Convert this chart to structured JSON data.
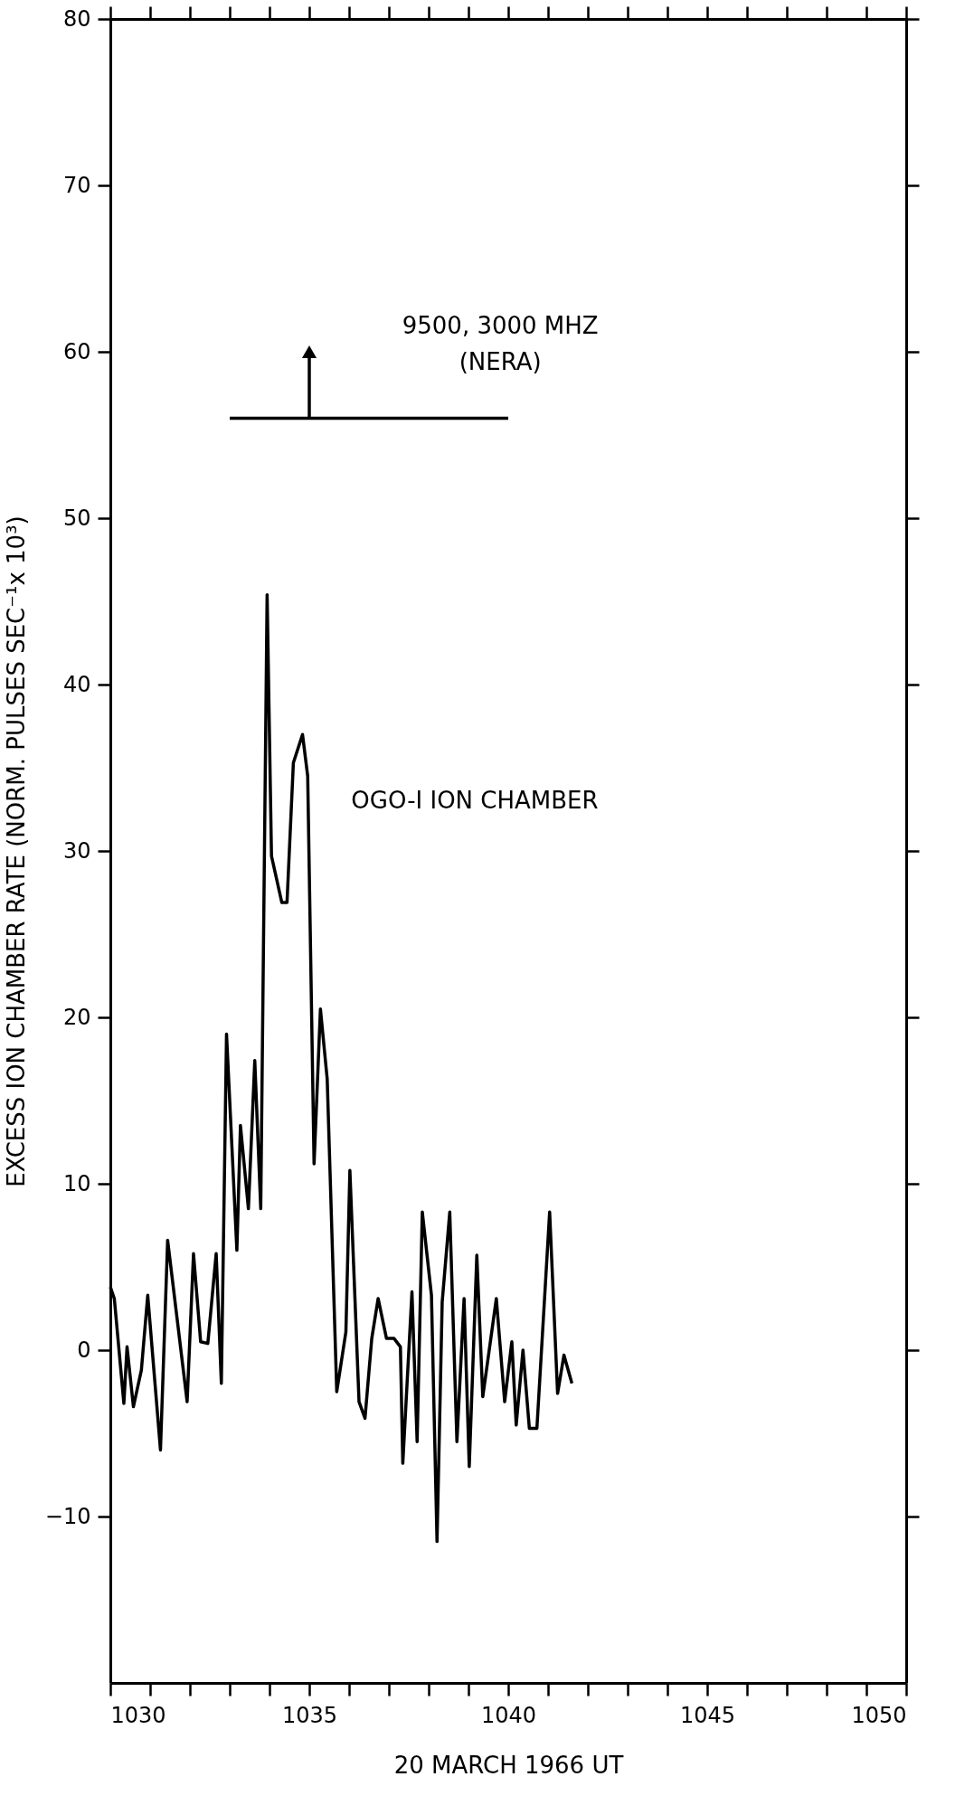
{
  "chart_data": {
    "type": "line",
    "xlabel": "20 MARCH 1966 UT",
    "ylabel": "EXCESS  ION CHAMBER RATE (NORM. PULSES SEC⁻¹x 10³)",
    "xlim": [
      1030,
      1050
    ],
    "ylim": [
      -20,
      80
    ],
    "xticks": [
      1030,
      {
        "value": 1031,
        "label": null
      },
      {
        "value": 1032,
        "label": null
      },
      {
        "value": 1033,
        "label": null
      },
      {
        "value": 1034,
        "label": null
      },
      1035,
      {
        "value": 1036,
        "label": null
      },
      {
        "value": 1037,
        "label": null
      },
      {
        "value": 1038,
        "label": null
      },
      {
        "value": 1039,
        "label": null
      },
      1040,
      {
        "value": 1041,
        "label": null
      },
      {
        "value": 1042,
        "label": null
      },
      {
        "value": 1043,
        "label": null
      },
      {
        "value": 1044,
        "label": null
      },
      1045,
      {
        "value": 1046,
        "label": null
      },
      {
        "value": 1047,
        "label": null
      },
      {
        "value": 1048,
        "label": null
      },
      {
        "value": 1049,
        "label": null
      },
      1050
    ],
    "yticks": [
      -10,
      0,
      10,
      20,
      30,
      40,
      50,
      60,
      70,
      80
    ],
    "grid": false,
    "marker": "none",
    "line_style": "solid",
    "series": [
      {
        "name": "OGO-I ION CHAMBER",
        "color": "#000000",
        "x": [
          1030.0,
          1030.1,
          1030.34,
          1030.42,
          1030.58,
          1030.78,
          1030.94,
          1031.26,
          1031.44,
          1031.93,
          1032.09,
          1032.27,
          1032.45,
          1032.66,
          1032.79,
          1032.92,
          1033.18,
          1033.27,
          1033.47,
          1033.63,
          1033.78,
          1033.94,
          1034.05,
          1034.31,
          1034.44,
          1034.6,
          1034.83,
          1034.96,
          1035.12,
          1035.28,
          1035.45,
          1035.69,
          1035.92,
          1036.02,
          1036.25,
          1036.4,
          1036.57,
          1036.73,
          1036.94,
          1037.13,
          1037.29,
          1037.35,
          1037.58,
          1037.71,
          1037.84,
          1038.07,
          1038.21,
          1038.34,
          1038.53,
          1038.71,
          1038.89,
          1039.02,
          1039.21,
          1039.36,
          1039.7,
          1039.91,
          1040.09,
          1040.2,
          1040.37,
          1040.53,
          1040.72,
          1041.04,
          1041.24,
          1041.4,
          1041.6
        ],
        "values": [
          3.8,
          3.1,
          -3.2,
          0.2,
          -3.4,
          -1.2,
          3.3,
          -6.0,
          6.6,
          -3.1,
          5.8,
          0.5,
          0.4,
          5.8,
          -2.0,
          19.0,
          6.0,
          13.5,
          8.5,
          17.4,
          8.5,
          45.4,
          29.7,
          26.9,
          26.9,
          35.3,
          37.0,
          34.5,
          11.2,
          20.5,
          16.3,
          -2.5,
          1.1,
          10.8,
          -3.1,
          -4.1,
          0.7,
          3.1,
          0.7,
          0.7,
          0.2,
          -6.8,
          3.5,
          -5.5,
          8.3,
          3.3,
          -11.5,
          2.9,
          8.3,
          -5.5,
          3.1,
          -7.0,
          5.7,
          -2.8,
          3.1,
          -3.1,
          0.5,
          -4.5,
          0.0,
          -4.7,
          -4.7,
          8.3,
          -2.6,
          -0.3,
          -2.0
        ]
      },
      {
        "type": "line",
        "color": "#000000",
        "x": [
          1033.0,
          1040.0
        ],
        "values": [
          56,
          56
        ]
      },
      {
        "type": "line",
        "color": "#000000",
        "x": [
          1035.0,
          1035.0
        ],
        "values": [
          56,
          60
        ],
        "marker": "triangle"
      }
    ],
    "annotations": [
      "9500, 3000 MHZ\n(NERA)"
    ]
  }
}
